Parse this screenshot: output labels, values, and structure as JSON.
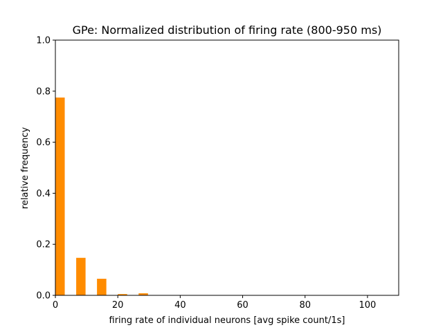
{
  "chart_data": {
    "type": "bar",
    "title": "GPe: Normalized distribution of firing rate (800-950 ms)",
    "xlabel": "firing rate of individual neurons [avg spike count/1s]",
    "ylabel": "relative frequency",
    "xlim": [
      0,
      110
    ],
    "ylim": [
      0,
      1.0
    ],
    "xticks": [
      0,
      20,
      40,
      60,
      80,
      100
    ],
    "xtick_labels": [
      "0",
      "20",
      "40",
      "60",
      "80",
      "100"
    ],
    "yticks": [
      0.0,
      0.2,
      0.4,
      0.6,
      0.8,
      1.0
    ],
    "ytick_labels": [
      "0.0",
      "0.2",
      "0.4",
      "0.6",
      "0.8",
      "1.0"
    ],
    "grid": false,
    "bar_color": "#ff8c00",
    "bar_width": 3,
    "bars": [
      {
        "x": 0,
        "value": 0.775
      },
      {
        "x": 6.67,
        "value": 0.147
      },
      {
        "x": 13.33,
        "value": 0.065
      },
      {
        "x": 20,
        "value": 0.005
      },
      {
        "x": 26.67,
        "value": 0.008
      }
    ]
  }
}
